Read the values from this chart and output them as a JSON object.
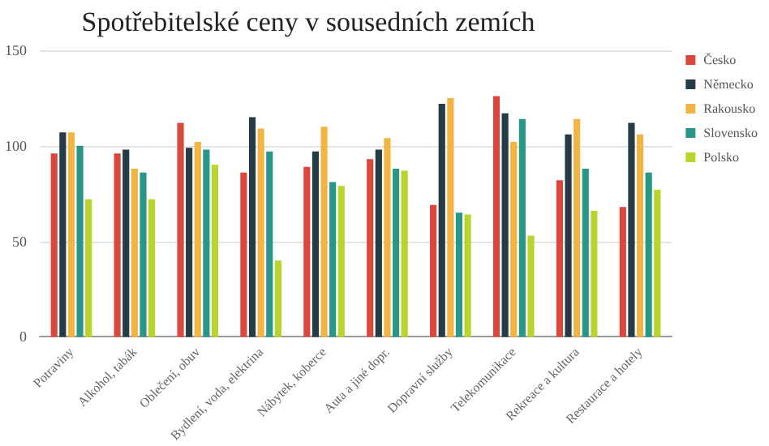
{
  "chart_data": {
    "type": "bar",
    "title": "Spotřebitelské ceny v sousedních zemích",
    "categories": [
      "Potraviny",
      "Alkohol, tabák",
      "Oblečení, obuv",
      "Bydlení, voda, elektrina",
      "Nábytek, koberce",
      "Auta a jiné dopr.",
      "Dopravní služby",
      "Telekomunikace",
      "Rekreace a kultura",
      "Restaurace a hotely"
    ],
    "series": [
      {
        "name": "Česko",
        "color": "#d9473d",
        "values": [
          96,
          96,
          112,
          86,
          89,
          93,
          69,
          126,
          82,
          68
        ]
      },
      {
        "name": "Německo",
        "color": "#253b45",
        "values": [
          107,
          98,
          99,
          115,
          97,
          98,
          122,
          117,
          106,
          112
        ]
      },
      {
        "name": "Rakousko",
        "color": "#f2b544",
        "values": [
          107,
          88,
          102,
          109,
          110,
          104,
          125,
          102,
          114,
          106
        ]
      },
      {
        "name": "Slovensko",
        "color": "#2a9688",
        "values": [
          100,
          86,
          98,
          97,
          81,
          88,
          65,
          114,
          88,
          86
        ]
      },
      {
        "name": "Polsko",
        "color": "#b9d42a",
        "values": [
          72,
          72,
          90,
          40,
          79,
          87,
          64,
          53,
          66,
          77
        ]
      }
    ],
    "ylim": [
      0,
      150
    ],
    "yticks": [
      0,
      50,
      100,
      150
    ],
    "grid": "y",
    "legend": "right"
  }
}
